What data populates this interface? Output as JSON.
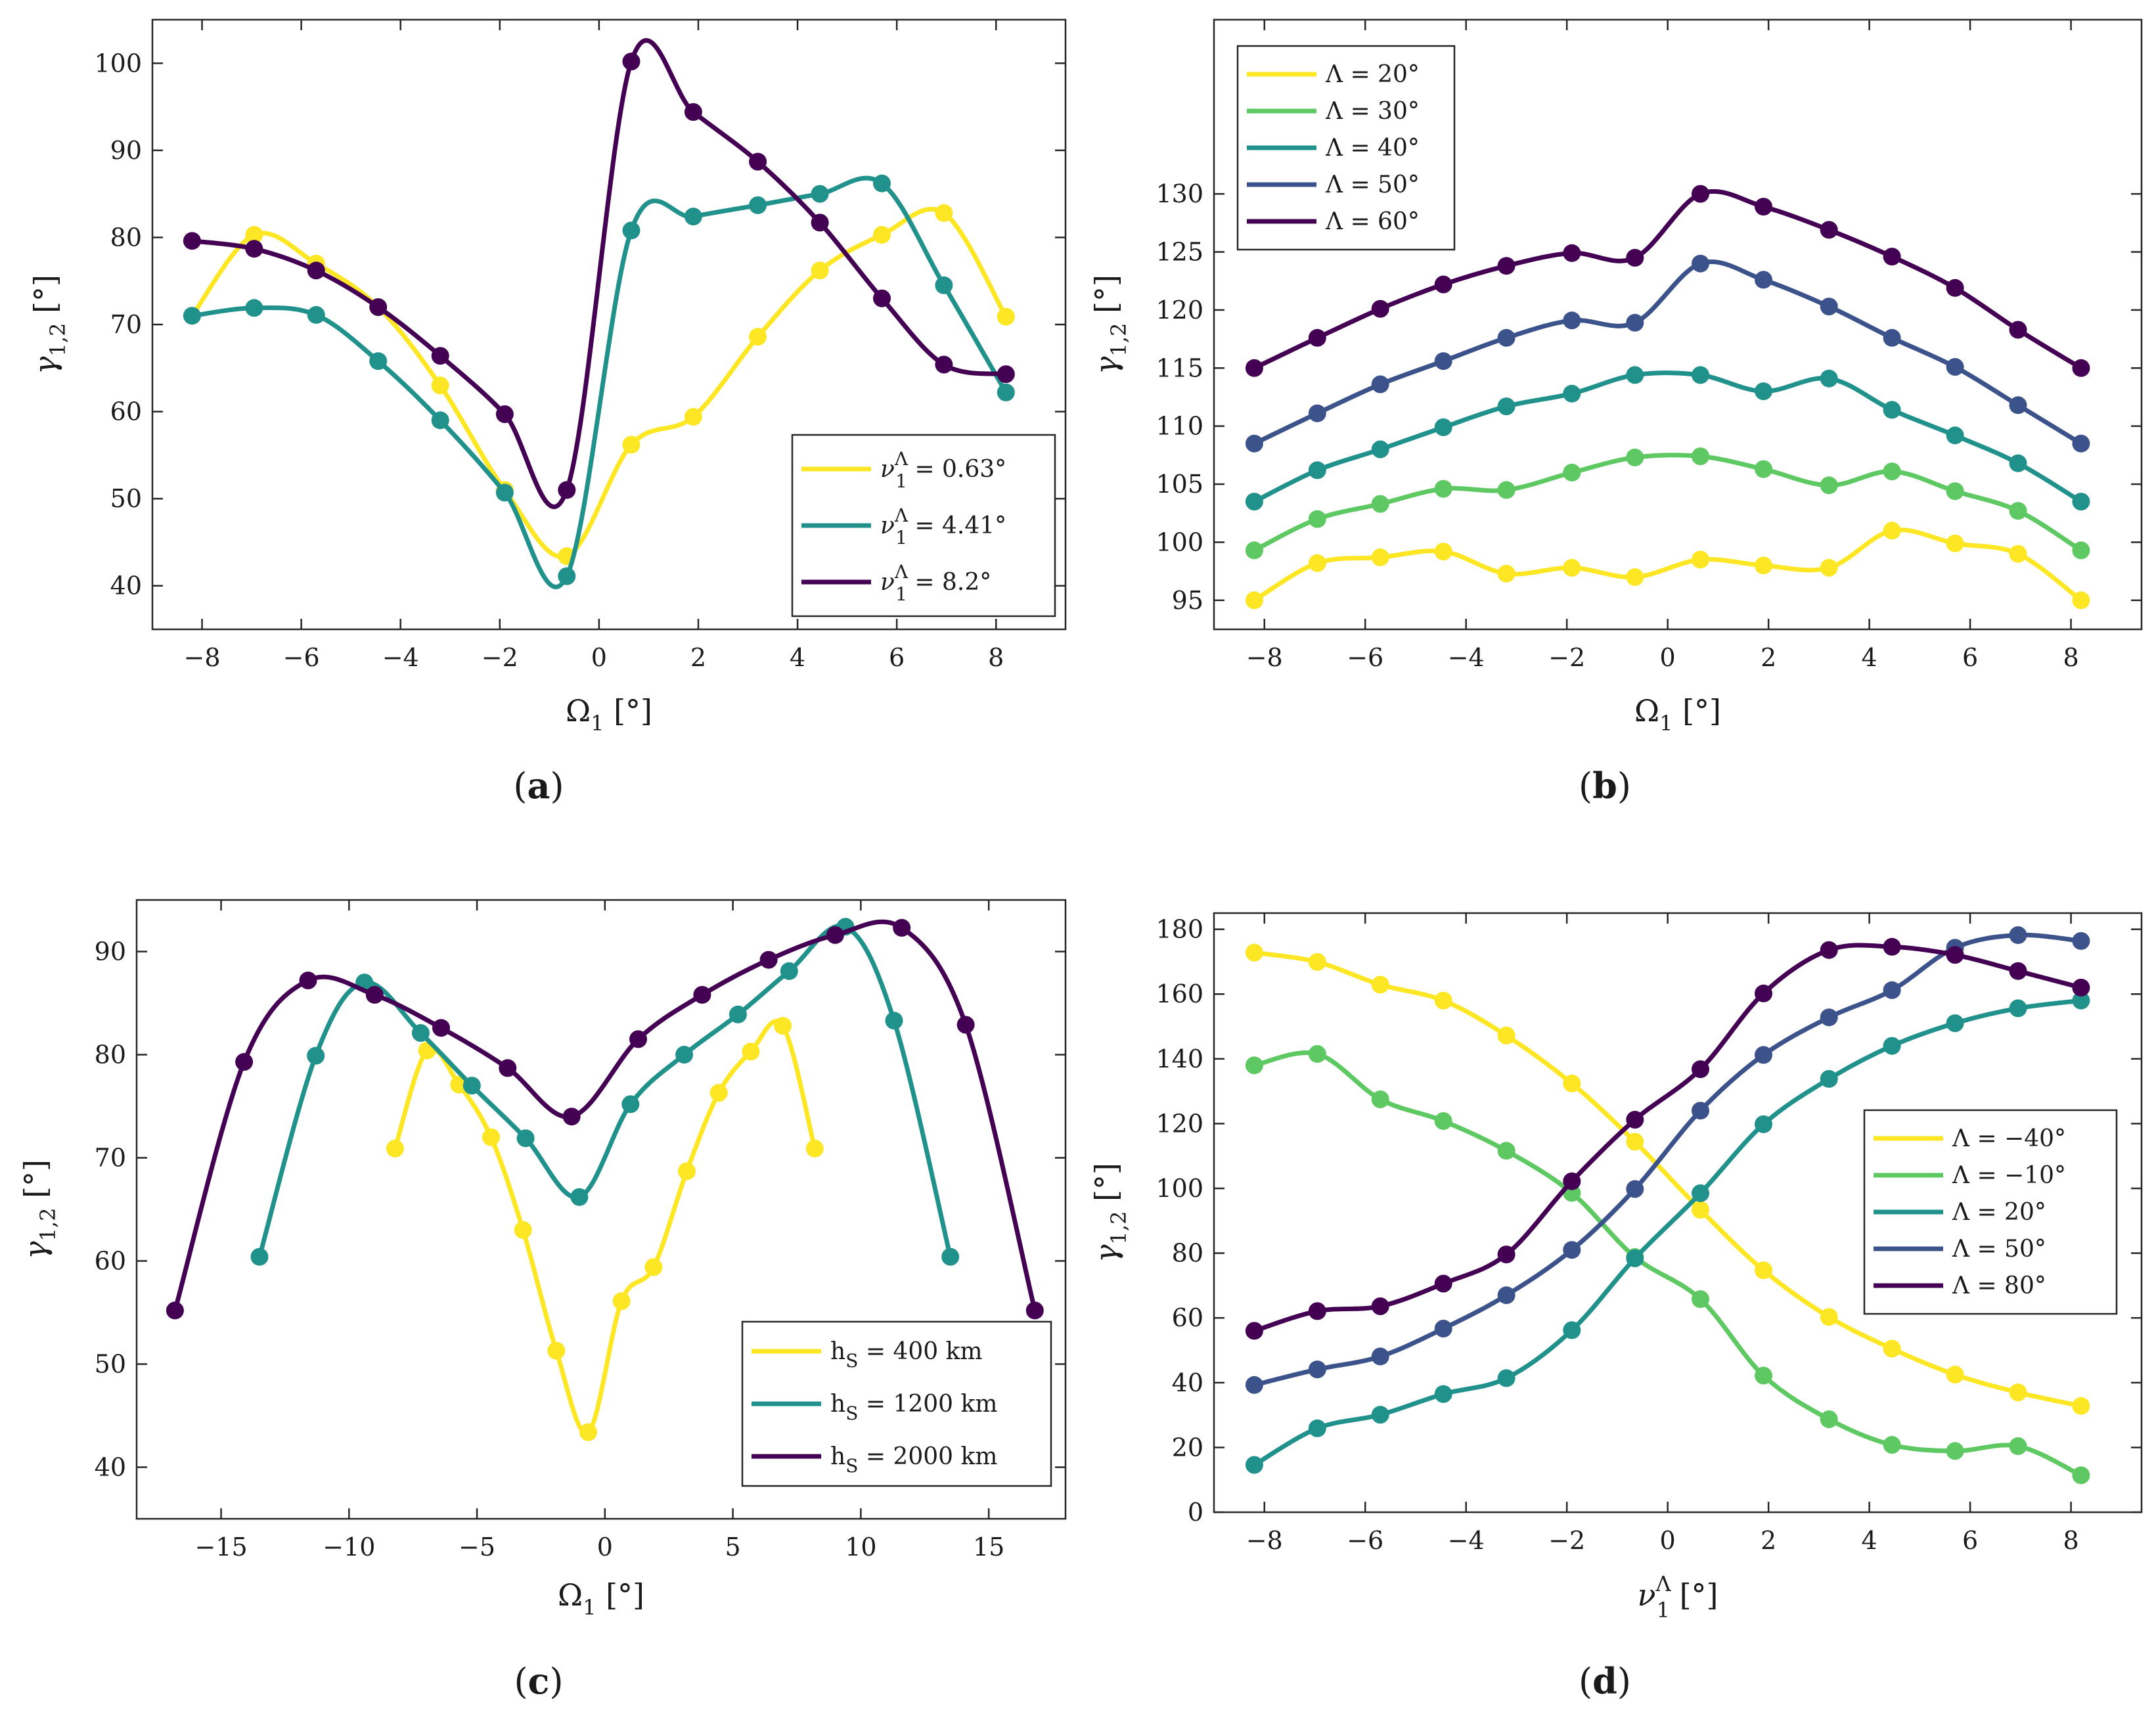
{
  "figure": {
    "colors": {
      "yellow": "#FDE725",
      "green": "#5EC962",
      "teal": "#21918C",
      "blue": "#3B528B",
      "purple": "#440154"
    }
  },
  "chart_data": [
    {
      "id": "a",
      "type": "line",
      "panel_label": "(a)",
      "xlabel": "Ω1 [°]",
      "ylabel": "γ1,2 [°]",
      "xlim": [
        -9,
        9.4
      ],
      "ylim": [
        35,
        105
      ],
      "xticks": [
        -8,
        -6,
        -4,
        -2,
        0,
        2,
        4,
        6,
        8
      ],
      "xtick_labels": [
        "−8",
        "−6",
        "−4",
        "−2",
        "0",
        "2",
        "4",
        "6",
        "8"
      ],
      "yticks": [
        40,
        50,
        60,
        70,
        80,
        90,
        100
      ],
      "ytick_labels": [
        "40",
        "50",
        "60",
        "70",
        "80",
        "90",
        "100"
      ],
      "legend_position": "bottom-right",
      "series": [
        {
          "name": "ν1Λ = 0.63°",
          "label_main": "ν",
          "label_sub": "1",
          "label_sup": "Λ",
          "label_rest": " = 0.63°",
          "color": "#FDE725",
          "x": [
            -8.2,
            -6.95,
            -5.7,
            -4.45,
            -3.2,
            -1.9,
            -0.65,
            0.65,
            1.9,
            3.2,
            4.45,
            5.7,
            6.95,
            8.2
          ],
          "y": [
            71,
            80.3,
            77,
            72,
            63,
            51,
            43.4,
            56.2,
            59.4,
            68.6,
            76.2,
            80.3,
            82.8,
            70.9
          ]
        },
        {
          "name": "ν1Λ = 4.41°",
          "label_main": "ν",
          "label_sub": "1",
          "label_sup": "Λ",
          "label_rest": " = 4.41°",
          "color": "#21918C",
          "x": [
            -8.2,
            -6.95,
            -5.7,
            -4.45,
            -3.2,
            -1.9,
            -0.65,
            0.65,
            1.9,
            3.2,
            4.45,
            5.7,
            6.95,
            8.2
          ],
          "y": [
            71,
            71.9,
            71.1,
            65.8,
            59,
            50.7,
            41.1,
            80.8,
            82.4,
            83.7,
            85,
            86.2,
            74.5,
            62.2
          ]
        },
        {
          "name": "ν1Λ = 8.2°",
          "label_main": "ν",
          "label_sub": "1",
          "label_sup": "Λ",
          "label_rest": " = 8.2°",
          "color": "#440154",
          "x": [
            -8.2,
            -6.95,
            -5.7,
            -4.45,
            -3.2,
            -1.9,
            -0.65,
            0.65,
            1.9,
            3.2,
            4.45,
            5.7,
            6.95,
            8.2
          ],
          "y": [
            79.6,
            78.7,
            76.2,
            72,
            66.4,
            59.7,
            51,
            100.2,
            94.4,
            88.7,
            81.7,
            73,
            65.4,
            64.3
          ]
        }
      ]
    },
    {
      "id": "b",
      "type": "line",
      "panel_label": "(b)",
      "xlabel": "Ω1 [°]",
      "ylabel": "γ1,2 [°]",
      "xlim": [
        -9,
        9.4
      ],
      "ylim": [
        92.5,
        145
      ],
      "xticks": [
        -8,
        -6,
        -4,
        -2,
        0,
        2,
        4,
        6,
        8
      ],
      "xtick_labels": [
        "−8",
        "−6",
        "−4",
        "−2",
        "0",
        "2",
        "4",
        "6",
        "8"
      ],
      "yticks": [
        95,
        100,
        105,
        110,
        115,
        120,
        125,
        130
      ],
      "ytick_labels": [
        "95",
        "100",
        "105",
        "110",
        "115",
        "120",
        "125",
        "130"
      ],
      "legend_position": "top-left",
      "series": [
        {
          "name": "Λ = 20°",
          "label_main": "Λ = 20°",
          "color": "#FDE725",
          "x": [
            -8.2,
            -6.95,
            -5.7,
            -4.45,
            -3.2,
            -1.9,
            -0.65,
            0.65,
            1.9,
            3.2,
            4.45,
            5.7,
            6.95,
            8.2
          ],
          "y": [
            95,
            98.2,
            98.7,
            99.2,
            97.3,
            97.8,
            97,
            98.5,
            98,
            97.8,
            101,
            99.9,
            99,
            95
          ]
        },
        {
          "name": "Λ = 30°",
          "label_main": "Λ = 30°",
          "color": "#5EC962",
          "x": [
            -8.2,
            -6.95,
            -5.7,
            -4.45,
            -3.2,
            -1.9,
            -0.65,
            0.65,
            1.9,
            3.2,
            4.45,
            5.7,
            6.95,
            8.2
          ],
          "y": [
            99.3,
            102,
            103.3,
            104.6,
            104.5,
            106,
            107.3,
            107.4,
            106.3,
            104.9,
            106.1,
            104.4,
            102.7,
            99.3
          ]
        },
        {
          "name": "Λ = 40°",
          "label_main": "Λ = 40°",
          "color": "#21918C",
          "x": [
            -8.2,
            -6.95,
            -5.7,
            -4.45,
            -3.2,
            -1.9,
            -0.65,
            0.65,
            1.9,
            3.2,
            4.45,
            5.7,
            6.95,
            8.2
          ],
          "y": [
            103.5,
            106.2,
            108,
            109.9,
            111.7,
            112.8,
            114.4,
            114.4,
            113,
            114.1,
            111.4,
            109.2,
            106.8,
            103.5
          ]
        },
        {
          "name": "Λ = 50°",
          "label_main": "Λ = 50°",
          "color": "#3B528B",
          "x": [
            -8.2,
            -6.95,
            -5.7,
            -4.45,
            -3.2,
            -1.9,
            -0.65,
            0.65,
            1.9,
            3.2,
            4.45,
            5.7,
            6.95,
            8.2
          ],
          "y": [
            108.5,
            111.1,
            113.6,
            115.6,
            117.6,
            119.1,
            118.9,
            124,
            122.6,
            120.3,
            117.6,
            115.1,
            111.8,
            108.5
          ]
        },
        {
          "name": "Λ = 60°",
          "label_main": "Λ = 60°",
          "color": "#440154",
          "x": [
            -8.2,
            -6.95,
            -5.7,
            -4.45,
            -3.2,
            -1.9,
            -0.65,
            0.65,
            1.9,
            3.2,
            4.45,
            5.7,
            6.95,
            8.2
          ],
          "y": [
            115,
            117.6,
            120.1,
            122.2,
            123.8,
            124.9,
            124.5,
            130,
            128.9,
            126.9,
            124.6,
            121.9,
            118.3,
            115
          ]
        }
      ]
    },
    {
      "id": "c",
      "type": "line",
      "panel_label": "(c)",
      "xlabel": "Ω1 [°]",
      "ylabel": "γ1,2 [°]",
      "xlim": [
        -18.3,
        18
      ],
      "ylim": [
        35,
        95
      ],
      "xticks": [
        -15,
        -10,
        -5,
        0,
        5,
        10,
        15
      ],
      "xtick_labels": [
        "−15",
        "−10",
        "−5",
        "0",
        "5",
        "10",
        "15"
      ],
      "yticks": [
        40,
        50,
        60,
        70,
        80,
        90
      ],
      "ytick_labels": [
        "40",
        "50",
        "60",
        "70",
        "80",
        "90"
      ],
      "legend_position": "bottom-right",
      "series": [
        {
          "name": "hS = 400 km",
          "label_main": "h",
          "label_sub": "S",
          "label_rest": " = 400 km",
          "color": "#FDE725",
          "x": [
            -8.2,
            -6.95,
            -5.7,
            -4.45,
            -3.2,
            -1.9,
            -0.65,
            0.65,
            1.9,
            3.2,
            4.45,
            5.7,
            6.95,
            8.2
          ],
          "y": [
            70.9,
            80.4,
            77.1,
            72,
            63,
            51.3,
            43.4,
            56.1,
            59.4,
            68.7,
            76.3,
            80.3,
            82.8,
            70.9
          ]
        },
        {
          "name": "hS = 1200 km",
          "label_main": "h",
          "label_sub": "S",
          "label_rest": " = 1200 km",
          "color": "#21918C",
          "x": [
            -13.5,
            -11.3,
            -9.4,
            -7.2,
            -5.2,
            -3.1,
            -1,
            1,
            3.1,
            5.2,
            7.2,
            9.4,
            11.3,
            13.5
          ],
          "y": [
            60.4,
            79.9,
            87,
            82.1,
            77,
            71.9,
            66.2,
            75.2,
            80,
            83.9,
            88.1,
            92.4,
            83.3,
            60.4
          ]
        },
        {
          "name": "hS = 2000 km",
          "label_main": "h",
          "label_sub": "S",
          "label_rest": " = 2000 km",
          "color": "#440154",
          "x": [
            -16.8,
            -14.1,
            -11.6,
            -9,
            -6.4,
            -3.8,
            -1.3,
            1.3,
            3.8,
            6.4,
            9,
            11.6,
            14.1,
            16.8
          ],
          "y": [
            55.2,
            79.3,
            87.2,
            85.8,
            82.6,
            78.7,
            74,
            81.5,
            85.8,
            89.2,
            91.6,
            92.3,
            82.9,
            55.2
          ]
        }
      ]
    },
    {
      "id": "d",
      "type": "line",
      "panel_label": "(d)",
      "xlabel": "ν1Λ [°]",
      "ylabel": "γ1,2 [°]",
      "xlim": [
        -9,
        9.4
      ],
      "ylim": [
        0,
        185
      ],
      "xticks": [
        -8,
        -6,
        -4,
        -2,
        0,
        2,
        4,
        6,
        8
      ],
      "xtick_labels": [
        "−8",
        "−6",
        "−4",
        "−2",
        "0",
        "2",
        "4",
        "6",
        "8"
      ],
      "yticks": [
        0,
        20,
        40,
        60,
        80,
        100,
        120,
        140,
        160,
        180
      ],
      "ytick_labels": [
        "0",
        "20",
        "40",
        "60",
        "80",
        "100",
        "120",
        "140",
        "160",
        "180"
      ],
      "legend_position": "right",
      "series": [
        {
          "name": "Λ = −40°",
          "label_main": "Λ = −40°",
          "color": "#FDE725",
          "x": [
            -8.2,
            -6.95,
            -5.7,
            -4.45,
            -3.2,
            -1.9,
            -0.65,
            0.65,
            1.9,
            3.2,
            4.45,
            5.7,
            6.95,
            8.2
          ],
          "y": [
            172.8,
            169.9,
            162.9,
            158,
            147.2,
            132.4,
            114.4,
            93.4,
            74.7,
            60.3,
            50.5,
            42.5,
            37,
            32.8
          ]
        },
        {
          "name": "Λ = −10°",
          "label_main": "Λ = −10°",
          "color": "#5EC962",
          "x": [
            -8.2,
            -6.95,
            -5.7,
            -4.45,
            -3.2,
            -1.9,
            -0.65,
            0.65,
            1.9,
            3.2,
            4.45,
            5.7,
            6.95,
            8.2
          ],
          "y": [
            138,
            141.5,
            127.5,
            120.8,
            111.6,
            98.6,
            78.8,
            65.8,
            42.2,
            28.7,
            20.8,
            18.9,
            20.4,
            11.4
          ]
        },
        {
          "name": "Λ = 20°",
          "label_main": "Λ = 20°",
          "color": "#21918C",
          "x": [
            -8.2,
            -6.95,
            -5.7,
            -4.45,
            -3.2,
            -1.9,
            -0.65,
            0.65,
            1.9,
            3.2,
            4.45,
            5.7,
            6.95,
            8.2
          ],
          "y": [
            14.6,
            25.9,
            30.1,
            36.5,
            41.4,
            56.2,
            78.4,
            98.5,
            119.8,
            133.8,
            144,
            151,
            155.6,
            158
          ]
        },
        {
          "name": "Λ = 50°",
          "label_main": "Λ = 50°",
          "color": "#3B528B",
          "x": [
            -8.2,
            -6.95,
            -5.7,
            -4.45,
            -3.2,
            -1.9,
            -0.65,
            0.65,
            1.9,
            3.2,
            4.45,
            5.7,
            6.95,
            8.2
          ],
          "y": [
            39.3,
            44.1,
            48.1,
            56.7,
            67,
            81,
            99.8,
            124,
            141.2,
            152.8,
            161.2,
            174.3,
            178.2,
            176.4
          ]
        },
        {
          "name": "Λ = 80°",
          "label_main": "Λ = 80°",
          "color": "#440154",
          "x": [
            -8.2,
            -6.95,
            -5.7,
            -4.45,
            -3.2,
            -1.9,
            -0.65,
            0.65,
            1.9,
            3.2,
            4.45,
            5.7,
            6.95,
            8.2
          ],
          "y": [
            56,
            62.1,
            63.6,
            70.6,
            79.6,
            102.2,
            121.2,
            136.8,
            160.2,
            173.6,
            174.6,
            172.1,
            167.1,
            162
          ]
        }
      ]
    }
  ]
}
